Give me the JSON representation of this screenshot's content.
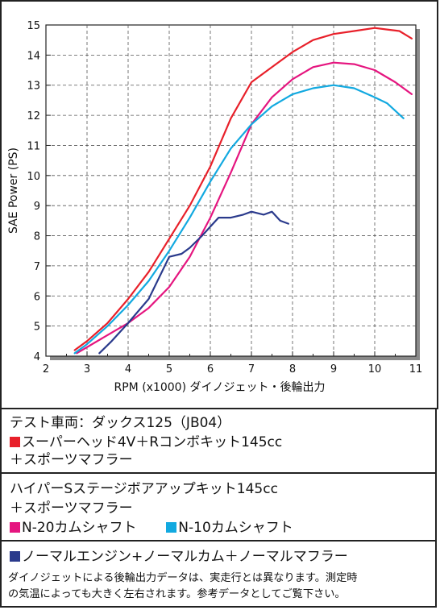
{
  "chart_data": {
    "type": "line",
    "xlabel": "RPM (x1000) ダイノジェット・後輪出力",
    "ylabel": "SAE Power (PS)",
    "xlim": [
      2,
      11
    ],
    "ylim": [
      4,
      15
    ],
    "x_ticks": [
      "2",
      "3",
      "4",
      "5",
      "6",
      "7",
      "8",
      "9",
      "10",
      "11"
    ],
    "y_ticks": [
      "4",
      "5",
      "6",
      "7",
      "8",
      "9",
      "10",
      "11",
      "12",
      "13",
      "14",
      "15"
    ],
    "grid": true,
    "series": [
      {
        "color": "#e8202a",
        "points": [
          [
            2.7,
            4.2
          ],
          [
            3.0,
            4.5
          ],
          [
            3.5,
            5.1
          ],
          [
            4.0,
            5.9
          ],
          [
            4.5,
            6.8
          ],
          [
            5.0,
            7.9
          ],
          [
            5.5,
            9.0
          ],
          [
            6.0,
            10.3
          ],
          [
            6.5,
            11.9
          ],
          [
            7.0,
            13.1
          ],
          [
            7.5,
            13.6
          ],
          [
            8.0,
            14.1
          ],
          [
            8.5,
            14.5
          ],
          [
            9.0,
            14.7
          ],
          [
            9.5,
            14.8
          ],
          [
            10.0,
            14.9
          ],
          [
            10.3,
            14.85
          ],
          [
            10.6,
            14.8
          ],
          [
            10.9,
            14.55
          ]
        ]
      },
      {
        "color": "#e5157f",
        "points": [
          [
            2.75,
            4.1
          ],
          [
            3.5,
            4.7
          ],
          [
            4.0,
            5.1
          ],
          [
            4.5,
            5.6
          ],
          [
            5.0,
            6.3
          ],
          [
            5.5,
            7.3
          ],
          [
            6.0,
            8.6
          ],
          [
            6.5,
            10.1
          ],
          [
            7.0,
            11.7
          ],
          [
            7.5,
            12.6
          ],
          [
            8.0,
            13.2
          ],
          [
            8.5,
            13.6
          ],
          [
            9.0,
            13.75
          ],
          [
            9.5,
            13.7
          ],
          [
            10.0,
            13.5
          ],
          [
            10.5,
            13.1
          ],
          [
            10.9,
            12.7
          ]
        ]
      },
      {
        "color": "#12a9e0",
        "points": [
          [
            2.7,
            4.1
          ],
          [
            3.0,
            4.4
          ],
          [
            3.5,
            5.0
          ],
          [
            4.0,
            5.7
          ],
          [
            4.5,
            6.5
          ],
          [
            5.0,
            7.5
          ],
          [
            5.5,
            8.6
          ],
          [
            6.0,
            9.8
          ],
          [
            6.5,
            10.9
          ],
          [
            7.0,
            11.7
          ],
          [
            7.5,
            12.3
          ],
          [
            8.0,
            12.7
          ],
          [
            8.5,
            12.9
          ],
          [
            9.0,
            13.0
          ],
          [
            9.5,
            12.9
          ],
          [
            10.0,
            12.6
          ],
          [
            10.3,
            12.4
          ],
          [
            10.7,
            11.9
          ]
        ]
      },
      {
        "color": "#2a3a8c",
        "points": [
          [
            3.3,
            4.1
          ],
          [
            3.6,
            4.5
          ],
          [
            4.0,
            5.1
          ],
          [
            4.5,
            5.9
          ],
          [
            5.0,
            7.3
          ],
          [
            5.3,
            7.4
          ],
          [
            5.5,
            7.6
          ],
          [
            5.8,
            8.0
          ],
          [
            6.0,
            8.3
          ],
          [
            6.2,
            8.6
          ],
          [
            6.5,
            8.6
          ],
          [
            6.8,
            8.7
          ],
          [
            7.0,
            8.8
          ],
          [
            7.3,
            8.7
          ],
          [
            7.5,
            8.8
          ],
          [
            7.7,
            8.5
          ],
          [
            7.9,
            8.4
          ]
        ]
      }
    ]
  },
  "panel1": {
    "line1": "テスト車両：ダックス125（JB04）",
    "line2": "スーパーヘッド4V＋Rコンボキット145cc",
    "line3": "＋スポーツマフラー",
    "swatch2": "#e8202a"
  },
  "panel2": {
    "line1": "ハイパーSステージボアアップキット145cc",
    "line2": "＋スポーツマフラー",
    "legend_a": "N-20カムシャフト",
    "legend_b": "N-10カムシャフト",
    "swatch_a": "#e5157f",
    "swatch_b": "#12a9e0"
  },
  "panel3": {
    "line1": "ノーマルエンジン+ノーマルカム＋ノーマルマフラー",
    "swatch": "#2a3a8c",
    "note1": "ダイノジェットによる後輪出力データは、実走行とは異なります。測定時",
    "note2": "の気温によっても大きく左右されます。参考データとしてご覧下さい。"
  }
}
